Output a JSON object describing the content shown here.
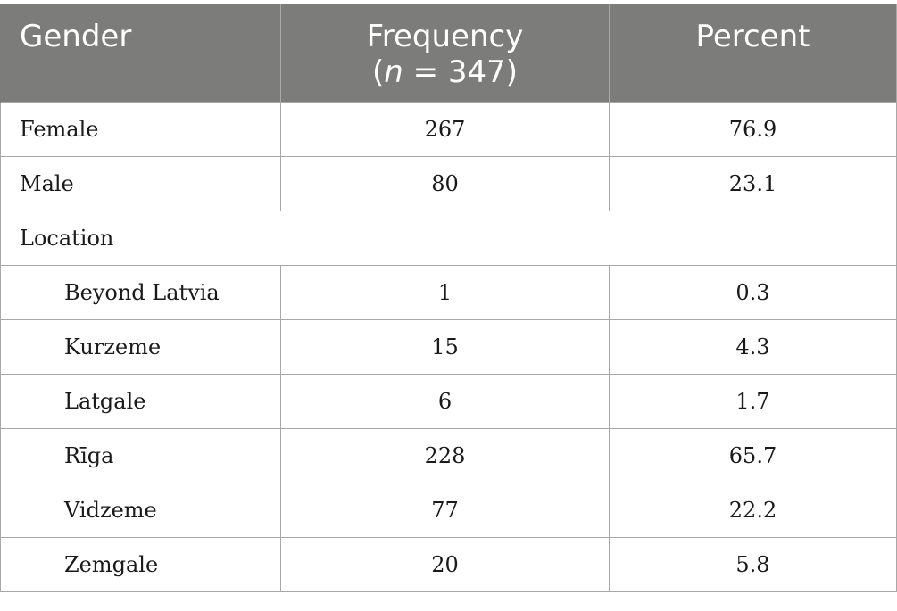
{
  "table": {
    "headers": {
      "gender": "Gender",
      "frequency": "Frequency",
      "n_open": "(",
      "n_symbol": "n",
      "n_rest": " = 347)",
      "percent": "Percent"
    },
    "rows": [
      {
        "label": "Female",
        "frequency": "267",
        "percent": "76.9",
        "indent": false
      },
      {
        "label": "Male",
        "frequency": "80",
        "percent": "23.1",
        "indent": false
      },
      {
        "label": "Location",
        "frequency": "",
        "percent": "",
        "indent": false,
        "section": true
      },
      {
        "label": "Beyond Latvia",
        "frequency": "1",
        "percent": "0.3",
        "indent": true
      },
      {
        "label": "Kurzeme",
        "frequency": "15",
        "percent": "4.3",
        "indent": true
      },
      {
        "label": "Latgale",
        "frequency": "6",
        "percent": "1.7",
        "indent": true
      },
      {
        "label": "Rīga",
        "frequency": "228",
        "percent": "65.7",
        "indent": true
      },
      {
        "label": "Vidzeme",
        "frequency": "77",
        "percent": "22.2",
        "indent": true
      },
      {
        "label": "Zemgale",
        "frequency": "20",
        "percent": "5.8",
        "indent": true
      }
    ]
  },
  "colors": {
    "header_background": "#7c7d7b",
    "header_text": "#ffffff",
    "grid_line": "#a8a8a8",
    "body_text": "#1a1a1a"
  }
}
